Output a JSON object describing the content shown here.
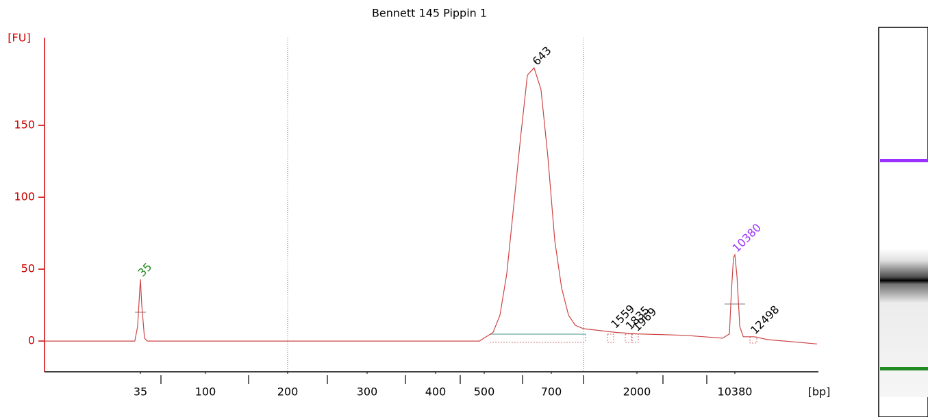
{
  "chart_data": {
    "type": "line",
    "title": "Bennett 145 Pippin 1",
    "ylabel": "[FU]",
    "xlabel": "[bp]",
    "ylim": [
      -21.4,
      211
    ],
    "yticks": [
      0,
      50,
      100,
      150
    ],
    "xlim": [
      1,
      20000
    ],
    "xticks": [
      35,
      {
        "value": 50,
        "label": null
      },
      100,
      {
        "value": 150,
        "label": null
      },
      200,
      {
        "value": 250,
        "label": null
      },
      300,
      {
        "value": 350,
        "label": null
      },
      400,
      {
        "value": 450,
        "label": null
      },
      500,
      {
        "value": 600,
        "label": null
      },
      700,
      {
        "value": 1000,
        "label": null
      },
      2000,
      {
        "value": 3000,
        "label": null
      },
      {
        "value": 7000,
        "label": null
      },
      10380
    ],
    "regions": [
      [
        200,
        1000
      ]
    ],
    "series": [
      {
        "color": "#cc4444",
        "x": [
          1,
          30,
          33,
          34,
          35,
          36,
          38,
          40,
          50,
          490,
          523,
          541,
          559,
          577,
          595,
          617,
          640,
          664,
          688,
          732,
          796,
          860,
          923,
          1000,
          1615,
          2000,
          5000,
          8896,
          9720,
          9968,
          10215,
          10380,
          10627,
          10957,
          11369,
          12606,
          14255,
          20000
        ],
        "values": [
          0,
          0,
          0,
          10,
          43,
          25,
          2,
          0,
          0,
          0,
          6,
          18,
          47,
          94,
          142,
          185,
          190,
          175,
          128,
          70,
          37,
          18,
          11,
          8.6,
          6,
          5,
          4,
          2,
          5,
          35,
          58,
          60,
          45,
          10,
          3,
          3,
          1,
          -2
        ]
      }
    ],
    "peaks": [
      {
        "bp": 35,
        "fu": 43,
        "color": "#228b22"
      },
      {
        "bp": 643,
        "fu": 190,
        "color": "#000000"
      },
      {
        "bp": 1559,
        "fu": 7,
        "color": "#000000"
      },
      {
        "bp": 1835,
        "fu": 6,
        "color": "#000000"
      },
      {
        "bp": 1969,
        "fu": 5,
        "color": "#000000"
      },
      {
        "bp": 10380,
        "fu": 60,
        "color": "#9b30ff"
      },
      {
        "bp": 12498,
        "fu": 3,
        "color": "#000000"
      }
    ],
    "axis_color": "#cc0000"
  }
}
